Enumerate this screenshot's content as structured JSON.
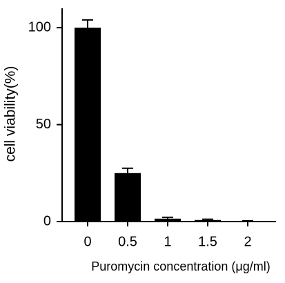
{
  "chart_data": {
    "type": "bar",
    "xlabel": "Puromycin concentration (μg/ml)",
    "ylabel": "cell viability(%)",
    "categories": [
      "0",
      "0.5",
      "1",
      "1.5",
      "2"
    ],
    "values": [
      100,
      25,
      1.5,
      0.8,
      0.3
    ],
    "errors": [
      4,
      2.5,
      0.7,
      0.4,
      0.1
    ],
    "color": "#000000",
    "ylim": [
      0,
      110
    ],
    "yticks": [
      0,
      50,
      100
    ]
  }
}
